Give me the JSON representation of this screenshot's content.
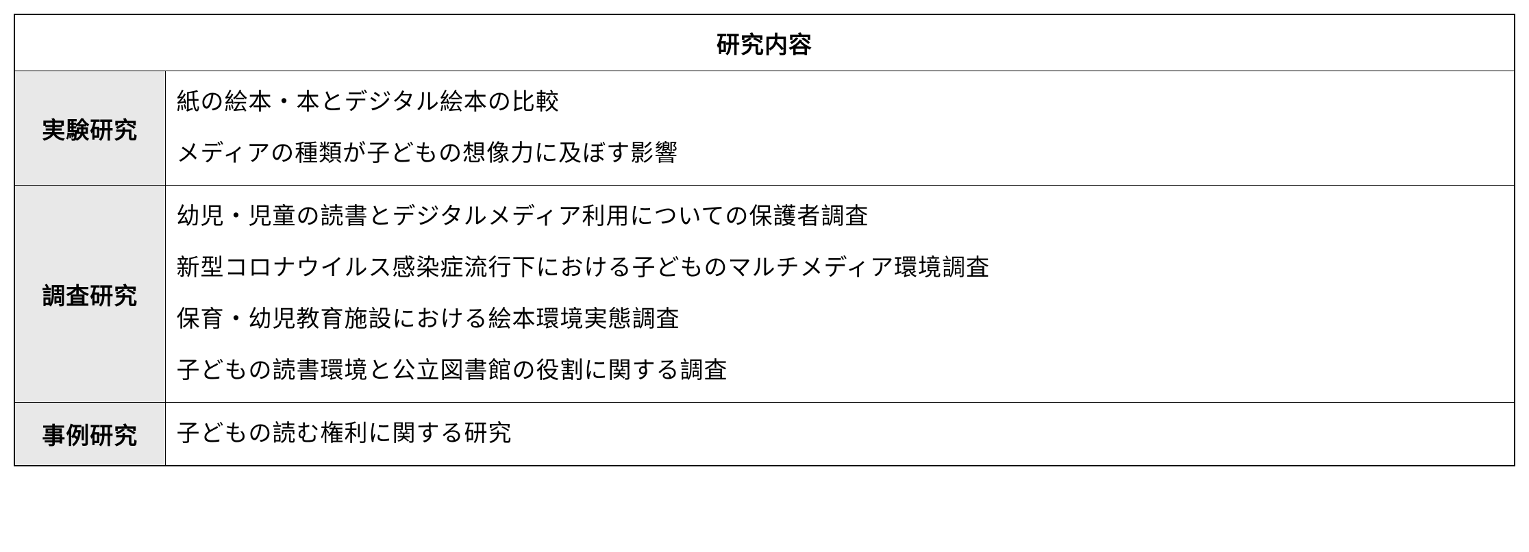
{
  "table": {
    "header": "研究内容",
    "rows": [
      {
        "category": "実験研究",
        "items": [
          "紙の絵本・本とデジタル絵本の比較",
          "メディアの種類が子どもの想像力に及ぼす影響"
        ]
      },
      {
        "category": "調査研究",
        "items": [
          "幼児・児童の読書とデジタルメディア利用についての保護者調査",
          "新型コロナウイルス感染症流行下における子どものマルチメディア環境調査",
          "保育・幼児教育施設における絵本環境実態調査",
          "子どもの読書環境と公立図書館の役割に関する調査"
        ]
      },
      {
        "category": "事例研究",
        "items": [
          "子どもの読む権利に関する研究"
        ]
      }
    ],
    "styling": {
      "border_color": "#000000",
      "header_bg": "#ffffff",
      "category_bg": "#e8e8e8",
      "content_bg": "#ffffff",
      "font_size_header": 34,
      "font_size_category": 34,
      "font_size_content": 34,
      "font_weight_header": "bold",
      "font_weight_category": "bold",
      "category_column_width": 220
    }
  }
}
